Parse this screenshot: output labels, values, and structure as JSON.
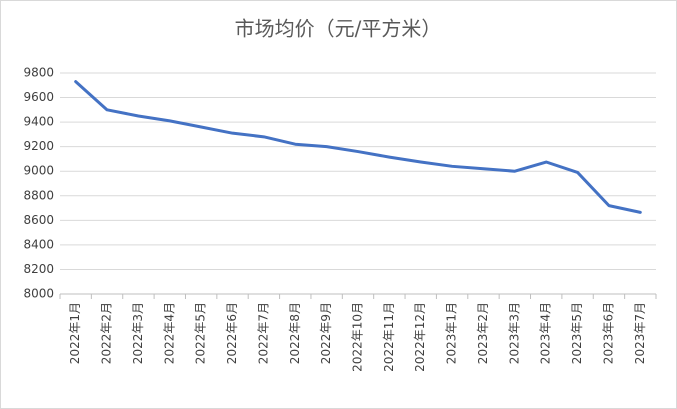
{
  "chart_data": {
    "type": "line",
    "title": "市场均价（元/平方米）",
    "categories": [
      "2022年1月",
      "2022年2月",
      "2022年3月",
      "2022年4月",
      "2022年5月",
      "2022年6月",
      "2022年7月",
      "2022年8月",
      "2022年9月",
      "2022年10月",
      "2022年11月",
      "2022年12月",
      "2023年1月",
      "2023年2月",
      "2023年3月",
      "2023年4月",
      "2023年5月",
      "2023年6月",
      "2023年7月"
    ],
    "values": [
      9730,
      9500,
      9450,
      9410,
      9360,
      9310,
      9280,
      9220,
      9200,
      9160,
      9115,
      9075,
      9040,
      9020,
      9000,
      9075,
      8990,
      8720,
      8665
    ],
    "color": "#4472c4",
    "ylim": [
      8000,
      9800
    ],
    "yticks": [
      8000,
      8200,
      8400,
      8600,
      8800,
      9000,
      9200,
      9400,
      9600,
      9800
    ],
    "grid": true
  }
}
